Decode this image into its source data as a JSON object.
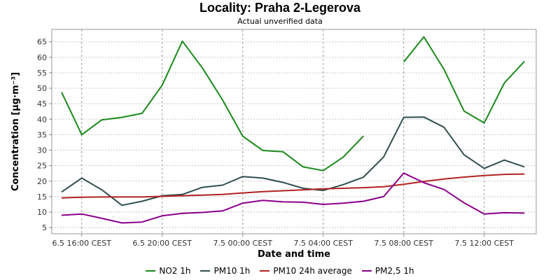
{
  "title": "Locality: Praha 2-Legerova",
  "subtitle": "Actual unverified data",
  "chart_data": {
    "type": "line",
    "xlabel": "Date and time",
    "ylabel": "Concentration [µg·m⁻³]",
    "ylim": [
      3,
      69
    ],
    "yticks": [
      5,
      10,
      15,
      20,
      25,
      30,
      35,
      40,
      45,
      50,
      55,
      60,
      65
    ],
    "x": [
      "6.5 15:00",
      "6.5 16:00",
      "6.5 17:00",
      "6.5 18:00",
      "6.5 19:00",
      "6.5 20:00",
      "6.5 21:00",
      "6.5 22:00",
      "6.5 23:00",
      "7.5 00:00",
      "7.5 01:00",
      "7.5 02:00",
      "7.5 03:00",
      "7.5 04:00",
      "7.5 05:00",
      "7.5 06:00",
      "7.5 07:00",
      "7.5 08:00",
      "7.5 09:00",
      "7.5 10:00",
      "7.5 11:00",
      "7.5 12:00",
      "7.5 13:00",
      "7.5 14:00"
    ],
    "xtick_labels": [
      {
        "index": 1,
        "label": "6.5 16:00 CEST"
      },
      {
        "index": 5,
        "label": "6.5 20:00 CEST"
      },
      {
        "index": 9,
        "label": "7.5 00:00 CEST"
      },
      {
        "index": 13,
        "label": "7.5 04:00 CEST"
      },
      {
        "index": 17,
        "label": "7.5 08:00 CEST"
      },
      {
        "index": 21,
        "label": "7.5 12:00 CEST"
      }
    ],
    "series": [
      {
        "name": "NO2 1h",
        "color": "#1a8a1a",
        "values": [
          48.7,
          35,
          39.8,
          40.6,
          41.9,
          51,
          65.2,
          56.5,
          46.2,
          34.5,
          29.9,
          29.5,
          24.6,
          23.4,
          27.8,
          34.6,
          null,
          58.5,
          66.6,
          56.1,
          42.6,
          38.8,
          51.7,
          58.7
        ]
      },
      {
        "name": "PM10 1h",
        "color": "#2f4f4f",
        "values": [
          16.5,
          21,
          17.2,
          12.2,
          13.5,
          15.3,
          15.7,
          18,
          18.7,
          21.5,
          21,
          19.6,
          17.7,
          17,
          18.9,
          21.3,
          27.8,
          40.6,
          40.7,
          37.4,
          28.5,
          24.1,
          26.8,
          24.6
        ]
      },
      {
        "name": "PM10 24h average",
        "color": "#b22222",
        "values": [
          14.6,
          14.8,
          14.9,
          14.9,
          14.9,
          15.1,
          15.3,
          15.5,
          15.7,
          16.2,
          16.6,
          16.9,
          17.2,
          17.5,
          17.7,
          17.9,
          18.2,
          19,
          19.9,
          20.7,
          21.3,
          21.8,
          22.2,
          22.3
        ]
      },
      {
        "name": "PM2,5 1h",
        "color": "#8b008b",
        "values": [
          9,
          9.4,
          8,
          6.5,
          6.8,
          8.8,
          9.6,
          9.9,
          10.4,
          12.9,
          13.8,
          13.3,
          13.2,
          12.5,
          12.9,
          13.5,
          15,
          22.6,
          19.5,
          17.3,
          13,
          9.4,
          9.8,
          9.7
        ]
      }
    ],
    "grid": true,
    "legend": "bottom"
  }
}
